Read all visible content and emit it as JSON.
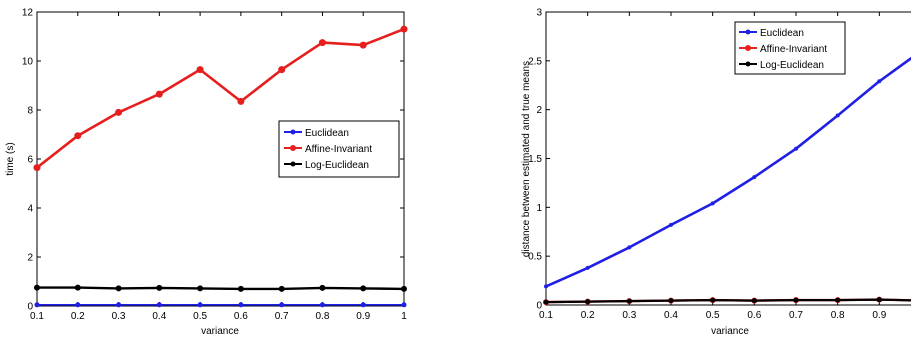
{
  "chart_data": [
    {
      "type": "line",
      "title": "",
      "xlabel": "variance",
      "ylabel": "time (s)",
      "xlim": [
        0.1,
        1
      ],
      "ylim": [
        0,
        12
      ],
      "xticks": [
        "0.1",
        "0.2",
        "0.3",
        "0.4",
        "0.5",
        "0.6",
        "0.7",
        "0.8",
        "0.9",
        "1"
      ],
      "yticks": [
        "0",
        "2",
        "4",
        "6",
        "8",
        "10",
        "12"
      ],
      "grid": false,
      "legend_position": "center-right",
      "x": [
        0.1,
        0.2,
        0.3,
        0.4,
        0.5,
        0.6,
        0.7,
        0.8,
        0.9,
        1.0
      ],
      "series": [
        {
          "name": "Euclidean",
          "color": "#1f1fe6",
          "values": [
            0.05,
            0.05,
            0.05,
            0.05,
            0.05,
            0.05,
            0.05,
            0.05,
            0.05,
            0.05
          ]
        },
        {
          "name": "Affine-Invariant",
          "color": "#e61e1e",
          "values": [
            5.65,
            6.95,
            7.9,
            8.65,
            9.65,
            8.35,
            9.65,
            10.75,
            10.65,
            11.3
          ]
        },
        {
          "name": "Log-Euclidean",
          "color": "#000000",
          "values": [
            0.75,
            0.75,
            0.72,
            0.74,
            0.72,
            0.7,
            0.7,
            0.74,
            0.72,
            0.7
          ]
        }
      ]
    },
    {
      "type": "line",
      "title": "",
      "xlabel": "variance",
      "ylabel": "distance between estimated and true means",
      "xlim": [
        0.1,
        1
      ],
      "ylim": [
        0,
        3
      ],
      "xticks": [
        "0.1",
        "0.2",
        "0.3",
        "0.4",
        "0.5",
        "0.6",
        "0.7",
        "0.8",
        "0.9"
      ],
      "yticks": [
        "0",
        "0.5",
        "1",
        "1.5",
        "2",
        "2.5",
        "3"
      ],
      "grid": false,
      "legend_position": "top-right",
      "x": [
        0.1,
        0.2,
        0.3,
        0.4,
        0.5,
        0.6,
        0.7,
        0.8,
        0.9,
        1.0
      ],
      "series": [
        {
          "name": "Euclidean",
          "color": "#1f1fe6",
          "values": [
            0.19,
            0.38,
            0.59,
            0.82,
            1.04,
            1.31,
            1.6,
            1.94,
            2.29,
            2.6
          ]
        },
        {
          "name": "Affine-Invariant",
          "color": "#e61e1e",
          "values": [
            0.03,
            0.035,
            0.04,
            0.045,
            0.05,
            0.045,
            0.05,
            0.05,
            0.055,
            0.045
          ]
        },
        {
          "name": "Log-Euclidean",
          "color": "#000000",
          "values": [
            0.03,
            0.035,
            0.04,
            0.045,
            0.05,
            0.045,
            0.05,
            0.05,
            0.055,
            0.045
          ]
        }
      ]
    }
  ]
}
